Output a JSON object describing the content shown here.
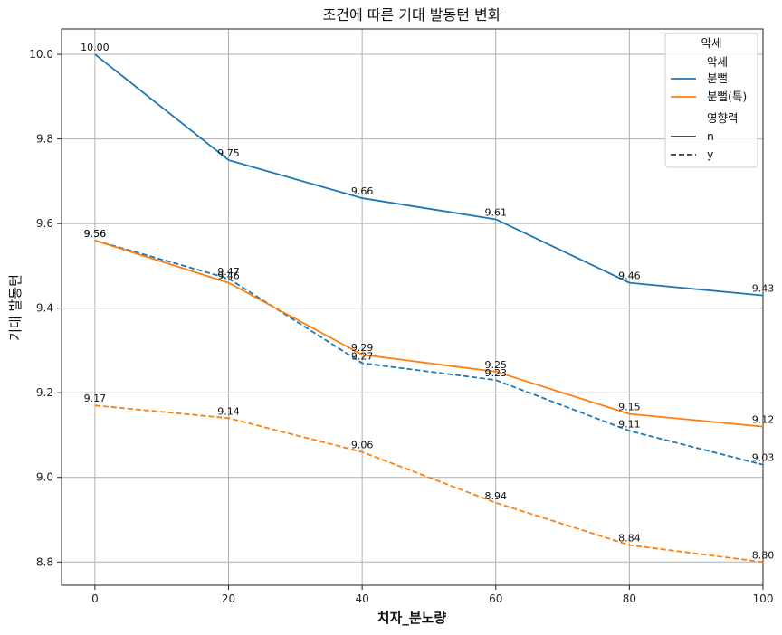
{
  "chart_data": {
    "type": "line",
    "title": "조건에 따른 기대 발동턴 변화",
    "xlabel": "치자_분노량",
    "ylabel": "기대 발동턴",
    "x": [
      0,
      20,
      40,
      60,
      80,
      100
    ],
    "xticks": [
      0,
      20,
      40,
      60,
      80,
      100
    ],
    "yticks": [
      8.8,
      9.0,
      9.2,
      9.4,
      9.6,
      9.8,
      10.0
    ],
    "xlim": [
      -5,
      100
    ],
    "ylim": [
      8.745,
      10.06
    ],
    "grid": true,
    "legend_position": "top-right",
    "legend": {
      "title": "악세",
      "hue_title": "악세",
      "hue_entries": [
        "분뻘",
        "분뻘(특)"
      ],
      "style_title": "영향력",
      "style_entries": [
        "n",
        "y"
      ]
    },
    "colors": {
      "분뻘": "#1f77b4",
      "분뻘(특)": "#ff7f0e",
      "grid": "#b0b0b0"
    },
    "series": [
      {
        "name": "분뻘 n",
        "hue": "분뻘",
        "style": "n",
        "values": [
          10.0,
          9.75,
          9.66,
          9.61,
          9.46,
          9.43
        ],
        "labels": [
          "10.00",
          "9.75",
          "9.66",
          "9.61",
          "9.46",
          "9.43"
        ]
      },
      {
        "name": "분뻘 y",
        "hue": "분뻘",
        "style": "y",
        "values": [
          9.56,
          9.47,
          9.27,
          9.23,
          9.11,
          9.03
        ],
        "labels": [
          "9.56",
          "9.47",
          "9.27",
          "9.23",
          "9.11",
          "9.03"
        ]
      },
      {
        "name": "분뻘(특) n",
        "hue": "분뻘(특)",
        "style": "n",
        "values": [
          9.56,
          9.46,
          9.29,
          9.25,
          9.15,
          9.12
        ],
        "labels": [
          "9.56",
          "9.46",
          "9.29",
          "9.25",
          "9.15",
          "9.12"
        ]
      },
      {
        "name": "분뻘(특) y",
        "hue": "분뻘(특)",
        "style": "y",
        "values": [
          9.17,
          9.14,
          9.06,
          8.94,
          8.84,
          8.8
        ],
        "labels": [
          "9.17",
          "9.14",
          "9.06",
          "8.94",
          "8.84",
          "8.80"
        ]
      }
    ]
  }
}
